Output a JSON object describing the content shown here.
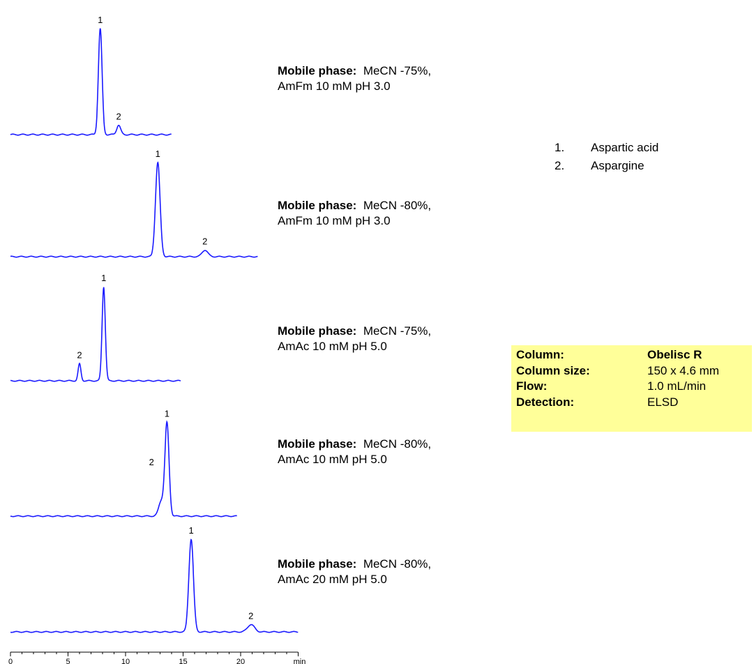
{
  "chart_data": {
    "type": "line",
    "xlabel": "min",
    "xticks": [
      0,
      5,
      10,
      15,
      20
    ],
    "xlim": [
      0,
      25
    ],
    "series": [
      {
        "x_end": 14.0,
        "peaks": [
          {
            "label": "1",
            "rt": 7.8,
            "height": 1.0,
            "sigma": 0.16
          },
          {
            "label": "2",
            "rt": 9.4,
            "height": 0.09,
            "sigma": 0.17
          }
        ],
        "mobile_phase_label": "Mobile phase:",
        "mobile_phase_line1": "MeCN -75%,",
        "mobile_phase_line2": "AmFm   10 mM  pH 3.0"
      },
      {
        "x_end": 21.5,
        "peaks": [
          {
            "label": "1",
            "rt": 12.8,
            "height": 1.0,
            "sigma": 0.2
          },
          {
            "label": "2",
            "rt": 16.9,
            "height": 0.07,
            "sigma": 0.25
          }
        ],
        "mobile_phase_label": "Mobile phase:",
        "mobile_phase_line1": "MeCN -80%,",
        "mobile_phase_line2": "AmFm   10 mM  pH 3.0"
      },
      {
        "x_end": 14.8,
        "peaks": [
          {
            "label": "2",
            "rt": 6.0,
            "height": 0.18,
            "sigma": 0.12
          },
          {
            "label": "1",
            "rt": 8.1,
            "height": 1.0,
            "sigma": 0.14
          }
        ],
        "mobile_phase_label": "Mobile phase:",
        "mobile_phase_line1": "MeCN -75%,",
        "mobile_phase_line2": "AmAc   10 mM  pH 5.0"
      },
      {
        "x_end": 19.7,
        "peaks": [
          {
            "label": "2",
            "rt": 13.1,
            "height": 0.16,
            "sigma": 0.22
          },
          {
            "label": "1",
            "rt": 13.6,
            "height": 1.0,
            "sigma": 0.18
          }
        ],
        "mobile_phase_label": "Mobile phase:",
        "mobile_phase_line1": "MeCN -80%,",
        "mobile_phase_line2": "AmAc   10 mM  pH 5.0"
      },
      {
        "x_end": 25.0,
        "peaks": [
          {
            "label": "1",
            "rt": 15.7,
            "height": 1.0,
            "sigma": 0.2
          },
          {
            "label": "2",
            "rt": 20.9,
            "height": 0.08,
            "sigma": 0.3
          }
        ],
        "mobile_phase_label": "Mobile phase:",
        "mobile_phase_line1": "MeCN -80%,",
        "mobile_phase_line2": "AmAc   20 mM  pH 5.0"
      }
    ],
    "line_color": "#1a1aff"
  },
  "legend": {
    "items": [
      {
        "num": "1.",
        "name": "Aspartic acid"
      },
      {
        "num": "2.",
        "name": "Aspargine"
      }
    ]
  },
  "conditions": {
    "background": "#ffff99",
    "rows": [
      {
        "key": "Column:",
        "value": "Obelisc R"
      },
      {
        "key": "Column size:",
        "value": "150 x 4.6 mm"
      },
      {
        "key": "Flow:",
        "value": "1.0 mL/min"
      },
      {
        "key": "Detection:",
        "value": "ELSD"
      }
    ]
  }
}
